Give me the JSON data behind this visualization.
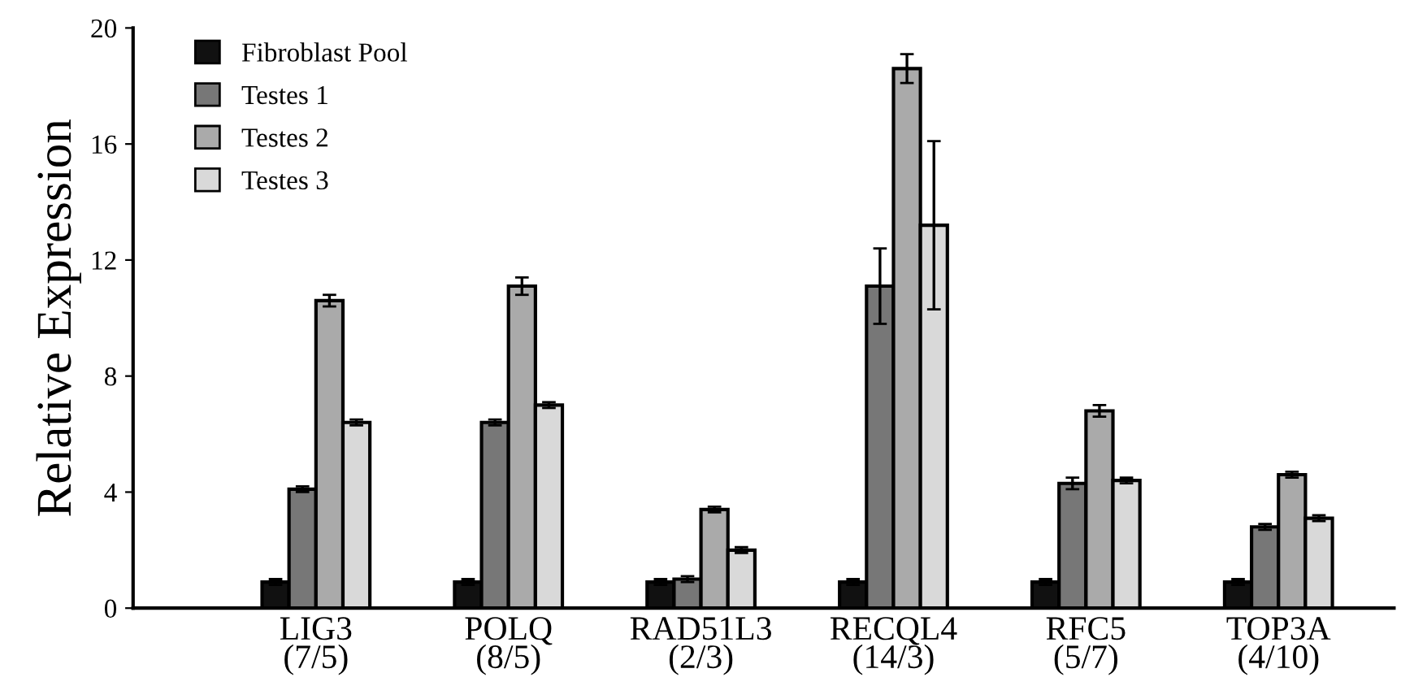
{
  "chart_data": {
    "type": "bar",
    "ylabel": "Relative Expression",
    "categories": [
      "LIG3\n(7/5)",
      "POLQ\n(8/5)",
      "RAD51L3\n(2/3)",
      "RECQL4\n(14/3)",
      "RFC5\n(5/7)",
      "TOP3A\n(4/10)"
    ],
    "series": [
      {
        "name": "Fibroblast Pool",
        "color": "#111111",
        "values": [
          0.9,
          0.9,
          0.9,
          0.9,
          0.9,
          0.9
        ],
        "errors": [
          0.1,
          0.1,
          0.1,
          0.1,
          0.1,
          0.1
        ]
      },
      {
        "name": "Testes 1",
        "color": "#777777",
        "values": [
          4.1,
          6.4,
          1.0,
          11.1,
          4.3,
          2.8
        ],
        "errors": [
          0.1,
          0.1,
          0.1,
          1.3,
          0.2,
          0.1
        ]
      },
      {
        "name": "Testes 2",
        "color": "#aaaaaa",
        "values": [
          10.6,
          11.1,
          3.4,
          18.6,
          6.8,
          4.6
        ],
        "errors": [
          0.2,
          0.3,
          0.1,
          0.5,
          0.2,
          0.1
        ]
      },
      {
        "name": "Testes 3",
        "color": "#d9d9d9",
        "values": [
          6.4,
          7.0,
          2.0,
          13.2,
          4.4,
          3.1
        ],
        "errors": [
          0.1,
          0.1,
          0.1,
          2.9,
          0.1,
          0.1
        ]
      }
    ],
    "ylim": [
      0,
      20
    ],
    "yticks": [
      0,
      4,
      8,
      12,
      16,
      20
    ],
    "grid": false,
    "legend": "top left"
  }
}
